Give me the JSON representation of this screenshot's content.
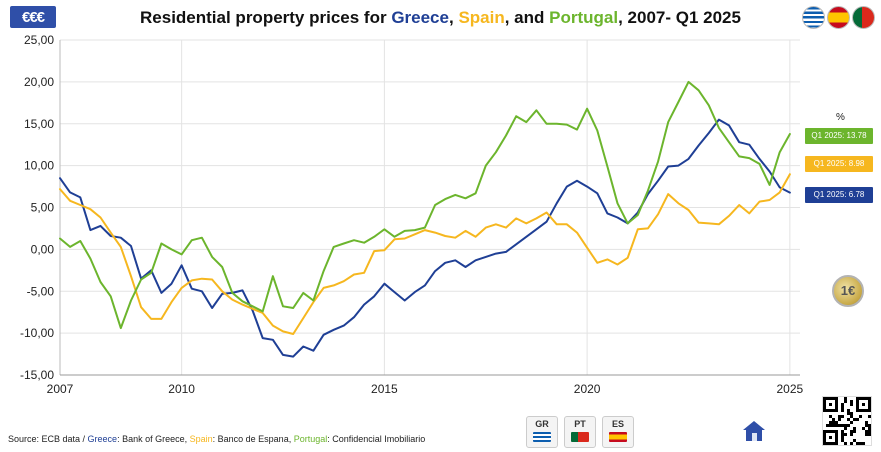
{
  "header": {
    "title_prefix": "Residential property prices for ",
    "title_greece": "Greece",
    "title_sep1": ", ",
    "title_spain": "Spain",
    "title_sep2": ", and ",
    "title_portugal": "Portugal",
    "title_suffix": ", 2007- Q1 2025",
    "logo_text": "€€€"
  },
  "colors": {
    "greece": "#1f3f95",
    "spain": "#f6b71f",
    "portugal": "#6cb52d",
    "grid": "#e3e3e3"
  },
  "badges": {
    "unit": "%",
    "portugal": "Q1 2025: 13.78",
    "spain": "Q1 2025: 8.98",
    "greece": "Q1 2025: 6.78"
  },
  "coin": {
    "label": "1€"
  },
  "footer": {
    "source_prefix": "Source: ECB data / ",
    "greece_word": "Greece",
    "greece_src": ": Bank of Greece, ",
    "spain_word": "Spain",
    "spain_src": ": Banco de Espana, ",
    "portugal_word": "Portugal",
    "portugal_src": ": Confidencial Imobiliario",
    "btn_gr": "GR",
    "btn_pt": "PT",
    "btn_es": "ES"
  },
  "chart_data": {
    "type": "line",
    "title": "Residential property prices for Greece, Spain, and Portugal, 2007- Q1 2025",
    "xlabel": "",
    "ylabel": "",
    "xlim": [
      2007,
      2025.25
    ],
    "ylim": [
      -15,
      25
    ],
    "yticks": [
      "25,00",
      "20,00",
      "15,00",
      "10,00",
      "5,00",
      "0,00",
      "-5,00",
      "-10,00",
      "-15,00"
    ],
    "xticks": [
      "2007",
      "2010",
      "2015",
      "2020",
      "2025"
    ],
    "grid": true,
    "x": [
      2007.0,
      2007.25,
      2007.5,
      2007.75,
      2008.0,
      2008.25,
      2008.5,
      2008.75,
      2009.0,
      2009.25,
      2009.5,
      2009.75,
      2010.0,
      2010.25,
      2010.5,
      2010.75,
      2011.0,
      2011.25,
      2011.5,
      2011.75,
      2012.0,
      2012.25,
      2012.5,
      2012.75,
      2013.0,
      2013.25,
      2013.5,
      2013.75,
      2014.0,
      2014.25,
      2014.5,
      2014.75,
      2015.0,
      2015.25,
      2015.5,
      2015.75,
      2016.0,
      2016.25,
      2016.5,
      2016.75,
      2017.0,
      2017.25,
      2017.5,
      2017.75,
      2018.0,
      2018.25,
      2018.5,
      2018.75,
      2019.0,
      2019.25,
      2019.5,
      2019.75,
      2020.0,
      2020.25,
      2020.5,
      2020.75,
      2021.0,
      2021.25,
      2021.5,
      2021.75,
      2022.0,
      2022.25,
      2022.5,
      2022.75,
      2023.0,
      2023.25,
      2023.5,
      2023.75,
      2024.0,
      2024.25,
      2024.5,
      2024.75,
      2025.0
    ],
    "series": [
      {
        "name": "Greece",
        "color": "#1f3f95",
        "values": [
          8.5,
          6.8,
          6.2,
          2.3,
          2.8,
          1.6,
          1.4,
          0.4,
          -3.5,
          -2.5,
          -5.2,
          -4.1,
          -1.9,
          -4.7,
          -5.0,
          -7.0,
          -5.3,
          -5.2,
          -4.9,
          -7.3,
          -10.6,
          -10.8,
          -12.6,
          -12.8,
          -11.6,
          -12.1,
          -10.2,
          -9.6,
          -9.1,
          -8.1,
          -6.6,
          -5.6,
          -4.1,
          -5.1,
          -6.1,
          -5.1,
          -4.3,
          -2.6,
          -1.6,
          -1.3,
          -2.1,
          -1.3,
          -0.9,
          -0.5,
          -0.3,
          0.6,
          1.5,
          2.4,
          3.3,
          5.5,
          7.5,
          8.2,
          7.5,
          6.7,
          4.3,
          3.8,
          3.1,
          4.4,
          6.6,
          8.2,
          9.9,
          10.0,
          10.8,
          12.4,
          13.9,
          15.5,
          14.8,
          12.8,
          12.5,
          10.8,
          9.3,
          7.4,
          6.78
        ]
      },
      {
        "name": "Spain",
        "color": "#f6b71f",
        "values": [
          7.2,
          5.8,
          5.3,
          4.8,
          3.8,
          2.0,
          0.3,
          -3.2,
          -6.9,
          -8.3,
          -8.3,
          -6.3,
          -4.6,
          -3.7,
          -3.5,
          -3.6,
          -5.0,
          -6.0,
          -6.6,
          -7.1,
          -7.6,
          -9.1,
          -9.8,
          -10.1,
          -8.2,
          -6.3,
          -4.6,
          -4.3,
          -3.8,
          -3.0,
          -2.8,
          -0.2,
          -0.1,
          1.2,
          1.3,
          1.8,
          2.3,
          2.0,
          1.6,
          1.4,
          2.2,
          1.5,
          2.6,
          3.0,
          2.6,
          3.7,
          3.1,
          3.7,
          4.4,
          3.0,
          3.0,
          2.0,
          0.2,
          -1.6,
          -1.2,
          -1.8,
          -1.0,
          2.4,
          2.5,
          4.2,
          6.6,
          5.5,
          4.7,
          3.2,
          3.1,
          3.0,
          4.0,
          5.3,
          4.3,
          5.7,
          5.9,
          6.8,
          8.98
        ]
      },
      {
        "name": "Portugal",
        "color": "#6cb52d",
        "values": [
          1.3,
          0.3,
          1.0,
          -1.1,
          -3.9,
          -5.6,
          -9.4,
          -6.1,
          -3.6,
          -2.8,
          0.7,
          0.0,
          -0.6,
          1.1,
          1.4,
          -0.9,
          -2.1,
          -5.2,
          -6.2,
          -6.8,
          -7.4,
          -3.2,
          -6.8,
          -7.0,
          -5.2,
          -6.1,
          -2.6,
          0.3,
          0.7,
          1.1,
          0.8,
          1.5,
          2.4,
          1.5,
          2.2,
          2.3,
          2.6,
          5.3,
          6.0,
          6.5,
          6.1,
          6.7,
          10.0,
          11.6,
          13.6,
          15.9,
          15.2,
          16.6,
          15.0,
          15.0,
          14.9,
          14.3,
          16.8,
          14.2,
          9.9,
          5.5,
          3.1,
          4.1,
          7.0,
          10.5,
          15.2,
          17.6,
          20.0,
          19.0,
          17.2,
          14.5,
          12.8,
          11.1,
          10.9,
          10.2,
          7.7,
          11.6,
          13.78
        ]
      }
    ]
  }
}
